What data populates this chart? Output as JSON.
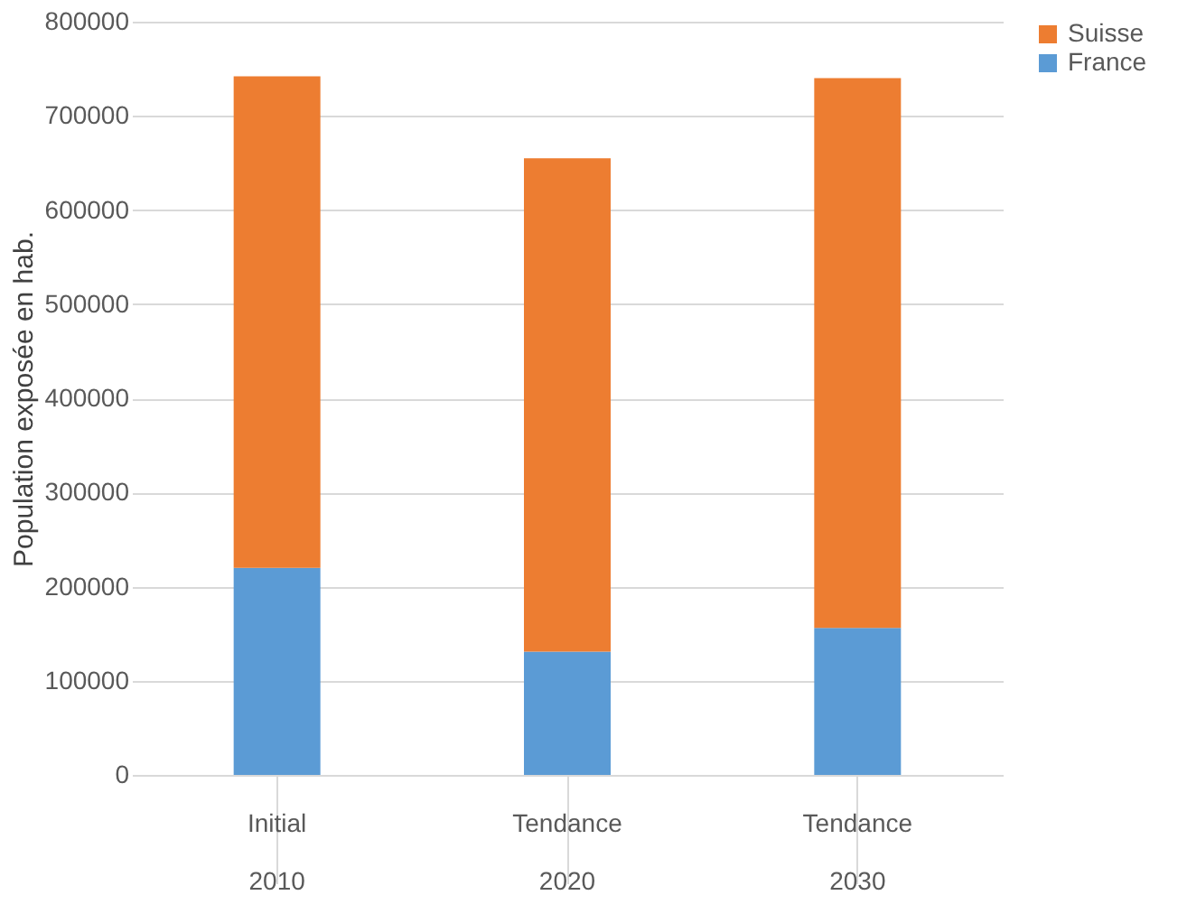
{
  "chart_data": {
    "type": "bar",
    "stacked": true,
    "ylabel": "Population exposée en hab.",
    "categories": [
      "Initial 2010",
      "Tendance 2020",
      "Tendance 2030"
    ],
    "series": [
      {
        "name": "France",
        "color": "#5b9bd5",
        "values": [
          220000,
          131000,
          156000
        ]
      },
      {
        "name": "Suisse",
        "color": "#ed7d31",
        "values": [
          522000,
          524000,
          584000
        ]
      }
    ],
    "ylim": [
      0,
      800000
    ],
    "yticks": [
      0,
      100000,
      200000,
      300000,
      400000,
      500000,
      600000,
      700000,
      800000
    ],
    "grid": "y",
    "legend": "right"
  }
}
